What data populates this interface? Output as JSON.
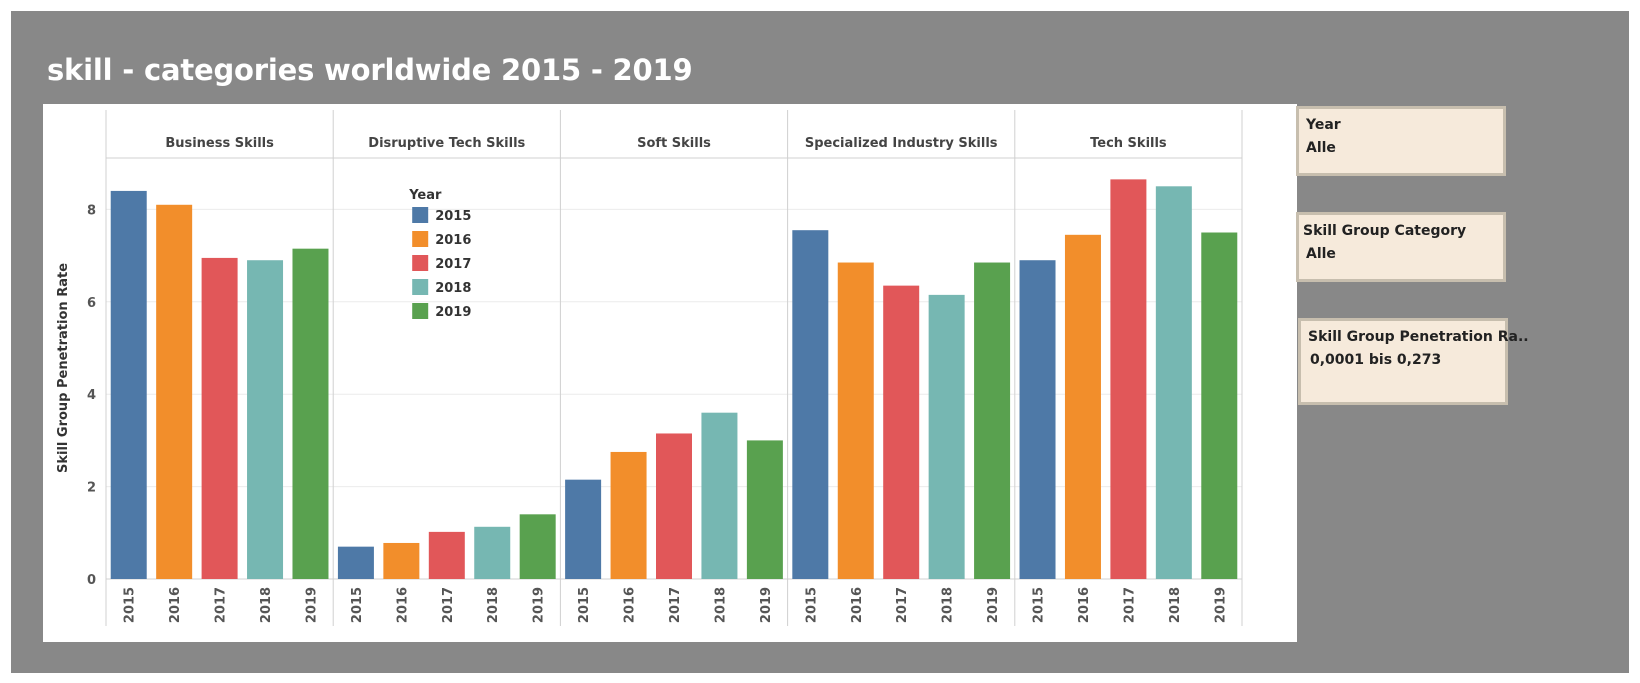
{
  "title": "skill - categories worldwide 2015 - 2019",
  "filters": [
    {
      "title": "Year",
      "value": "Alle"
    },
    {
      "title": "Skill Group Category",
      "value": "Alle"
    },
    {
      "title": "Skill Group Penetration Ra..",
      "value": "0,0001 bis 0,273"
    }
  ],
  "colors": {
    "2015": "#4e79a7",
    "2016": "#f28e2b",
    "2017": "#e15759",
    "2018": "#76b7b2",
    "2019": "#59a14f"
  },
  "chart_data": {
    "type": "bar",
    "ylabel": "Skill Group Penetration Rate",
    "ylim": [
      0,
      9
    ],
    "yticks": [
      0,
      2,
      4,
      6,
      8
    ],
    "grid": true,
    "legend": {
      "title": "Year",
      "placement": "inside, upper-left of second panel",
      "entries": [
        "2015",
        "2016",
        "2017",
        "2018",
        "2019"
      ]
    },
    "categories": [
      "Business Skills",
      "Disruptive Tech Skills",
      "Soft Skills",
      "Specialized Industry Skills",
      "Tech Skills"
    ],
    "x": [
      "2015",
      "2016",
      "2017",
      "2018",
      "2019"
    ],
    "series": [
      {
        "name": "2015",
        "values": [
          8.4,
          0.7,
          2.15,
          7.55,
          6.9
        ]
      },
      {
        "name": "2016",
        "values": [
          8.1,
          0.78,
          2.75,
          6.85,
          7.45
        ]
      },
      {
        "name": "2017",
        "values": [
          6.95,
          1.02,
          3.15,
          6.35,
          8.65
        ]
      },
      {
        "name": "2018",
        "values": [
          6.9,
          1.13,
          3.6,
          6.15,
          8.5
        ]
      },
      {
        "name": "2019",
        "values": [
          7.15,
          1.4,
          3.0,
          6.85,
          7.5
        ]
      }
    ]
  }
}
